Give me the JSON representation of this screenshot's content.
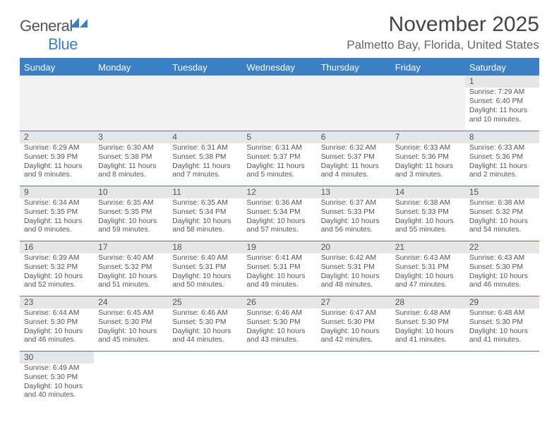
{
  "logo": {
    "part1": "General",
    "part2": "Blue",
    "color1": "#555555",
    "color2": "#3b7fc4"
  },
  "title": "November 2025",
  "subtitle": "Palmetto Bay, Florida, United States",
  "rule_color": "#3b7fc4",
  "header_bg": "#3b7fc4",
  "header_fg": "#ffffff",
  "empty_bg": "#f2f2f2",
  "daynum_bg": "#e6e6e6",
  "text_color": "#555555",
  "daynames": [
    "Sunday",
    "Monday",
    "Tuesday",
    "Wednesday",
    "Thursday",
    "Friday",
    "Saturday"
  ],
  "weeks": [
    [
      null,
      null,
      null,
      null,
      null,
      null,
      {
        "n": "1",
        "sr": "Sunrise: 7:29 AM",
        "ss": "Sunset: 6:40 PM",
        "dl": "Daylight: 11 hours and 10 minutes."
      }
    ],
    [
      {
        "n": "2",
        "sr": "Sunrise: 6:29 AM",
        "ss": "Sunset: 5:39 PM",
        "dl": "Daylight: 11 hours and 9 minutes."
      },
      {
        "n": "3",
        "sr": "Sunrise: 6:30 AM",
        "ss": "Sunset: 5:38 PM",
        "dl": "Daylight: 11 hours and 8 minutes."
      },
      {
        "n": "4",
        "sr": "Sunrise: 6:31 AM",
        "ss": "Sunset: 5:38 PM",
        "dl": "Daylight: 11 hours and 7 minutes."
      },
      {
        "n": "5",
        "sr": "Sunrise: 6:31 AM",
        "ss": "Sunset: 5:37 PM",
        "dl": "Daylight: 11 hours and 5 minutes."
      },
      {
        "n": "6",
        "sr": "Sunrise: 6:32 AM",
        "ss": "Sunset: 5:37 PM",
        "dl": "Daylight: 11 hours and 4 minutes."
      },
      {
        "n": "7",
        "sr": "Sunrise: 6:33 AM",
        "ss": "Sunset: 5:36 PM",
        "dl": "Daylight: 11 hours and 3 minutes."
      },
      {
        "n": "8",
        "sr": "Sunrise: 6:33 AM",
        "ss": "Sunset: 5:36 PM",
        "dl": "Daylight: 11 hours and 2 minutes."
      }
    ],
    [
      {
        "n": "9",
        "sr": "Sunrise: 6:34 AM",
        "ss": "Sunset: 5:35 PM",
        "dl": "Daylight: 11 hours and 0 minutes."
      },
      {
        "n": "10",
        "sr": "Sunrise: 6:35 AM",
        "ss": "Sunset: 5:35 PM",
        "dl": "Daylight: 10 hours and 59 minutes."
      },
      {
        "n": "11",
        "sr": "Sunrise: 6:35 AM",
        "ss": "Sunset: 5:34 PM",
        "dl": "Daylight: 10 hours and 58 minutes."
      },
      {
        "n": "12",
        "sr": "Sunrise: 6:36 AM",
        "ss": "Sunset: 5:34 PM",
        "dl": "Daylight: 10 hours and 57 minutes."
      },
      {
        "n": "13",
        "sr": "Sunrise: 6:37 AM",
        "ss": "Sunset: 5:33 PM",
        "dl": "Daylight: 10 hours and 56 minutes."
      },
      {
        "n": "14",
        "sr": "Sunrise: 6:38 AM",
        "ss": "Sunset: 5:33 PM",
        "dl": "Daylight: 10 hours and 55 minutes."
      },
      {
        "n": "15",
        "sr": "Sunrise: 6:38 AM",
        "ss": "Sunset: 5:32 PM",
        "dl": "Daylight: 10 hours and 54 minutes."
      }
    ],
    [
      {
        "n": "16",
        "sr": "Sunrise: 6:39 AM",
        "ss": "Sunset: 5:32 PM",
        "dl": "Daylight: 10 hours and 52 minutes."
      },
      {
        "n": "17",
        "sr": "Sunrise: 6:40 AM",
        "ss": "Sunset: 5:32 PM",
        "dl": "Daylight: 10 hours and 51 minutes."
      },
      {
        "n": "18",
        "sr": "Sunrise: 6:40 AM",
        "ss": "Sunset: 5:31 PM",
        "dl": "Daylight: 10 hours and 50 minutes."
      },
      {
        "n": "19",
        "sr": "Sunrise: 6:41 AM",
        "ss": "Sunset: 5:31 PM",
        "dl": "Daylight: 10 hours and 49 minutes."
      },
      {
        "n": "20",
        "sr": "Sunrise: 6:42 AM",
        "ss": "Sunset: 5:31 PM",
        "dl": "Daylight: 10 hours and 48 minutes."
      },
      {
        "n": "21",
        "sr": "Sunrise: 6:43 AM",
        "ss": "Sunset: 5:31 PM",
        "dl": "Daylight: 10 hours and 47 minutes."
      },
      {
        "n": "22",
        "sr": "Sunrise: 6:43 AM",
        "ss": "Sunset: 5:30 PM",
        "dl": "Daylight: 10 hours and 46 minutes."
      }
    ],
    [
      {
        "n": "23",
        "sr": "Sunrise: 6:44 AM",
        "ss": "Sunset: 5:30 PM",
        "dl": "Daylight: 10 hours and 46 minutes."
      },
      {
        "n": "24",
        "sr": "Sunrise: 6:45 AM",
        "ss": "Sunset: 5:30 PM",
        "dl": "Daylight: 10 hours and 45 minutes."
      },
      {
        "n": "25",
        "sr": "Sunrise: 6:46 AM",
        "ss": "Sunset: 5:30 PM",
        "dl": "Daylight: 10 hours and 44 minutes."
      },
      {
        "n": "26",
        "sr": "Sunrise: 6:46 AM",
        "ss": "Sunset: 5:30 PM",
        "dl": "Daylight: 10 hours and 43 minutes."
      },
      {
        "n": "27",
        "sr": "Sunrise: 6:47 AM",
        "ss": "Sunset: 5:30 PM",
        "dl": "Daylight: 10 hours and 42 minutes."
      },
      {
        "n": "28",
        "sr": "Sunrise: 6:48 AM",
        "ss": "Sunset: 5:30 PM",
        "dl": "Daylight: 10 hours and 41 minutes."
      },
      {
        "n": "29",
        "sr": "Sunrise: 6:48 AM",
        "ss": "Sunset: 5:30 PM",
        "dl": "Daylight: 10 hours and 41 minutes."
      }
    ],
    [
      {
        "n": "30",
        "sr": "Sunrise: 6:49 AM",
        "ss": "Sunset: 5:30 PM",
        "dl": "Daylight: 10 hours and 40 minutes."
      },
      null,
      null,
      null,
      null,
      null,
      null
    ]
  ]
}
